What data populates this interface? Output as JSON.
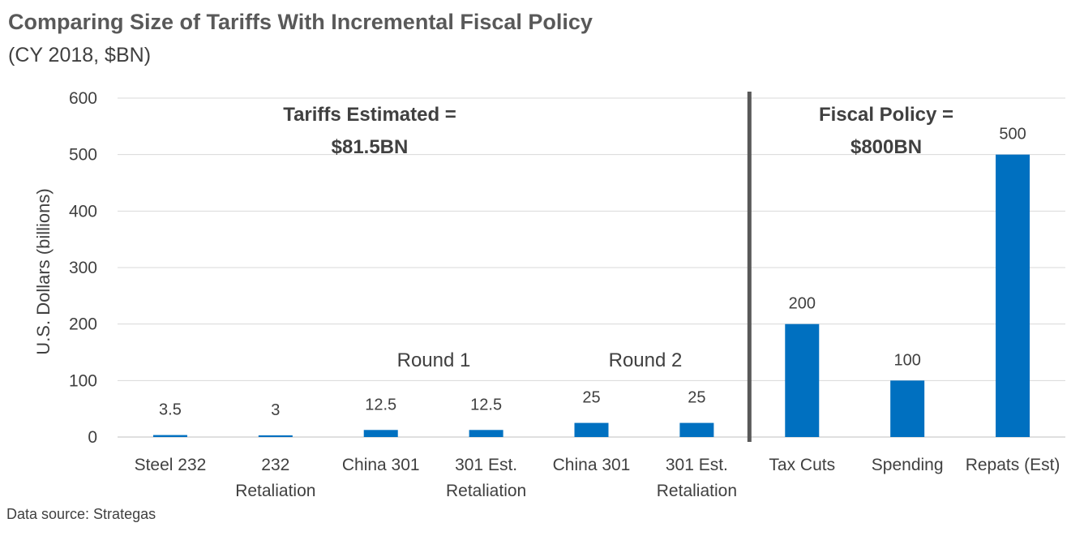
{
  "chart_data": {
    "type": "bar",
    "title": "Comparing Size of Tariffs With Incremental Fiscal Policy",
    "subtitle": "(CY 2018, $BN)",
    "ylabel": "U.S. Dollars (billions)",
    "xlabel": "",
    "ylim": [
      0,
      600
    ],
    "yticks": [
      0,
      100,
      200,
      300,
      400,
      500,
      600
    ],
    "grid": true,
    "bar_color": "#0070C0",
    "divider_color": "#595959",
    "categories": [
      [
        "Steel 232"
      ],
      [
        "232",
        "Retaliation"
      ],
      [
        "China 301"
      ],
      [
        "301 Est.",
        "Retaliation"
      ],
      [
        "China 301"
      ],
      [
        "301 Est.",
        "Retaliation"
      ],
      [
        "Tax Cuts"
      ],
      [
        "Spending"
      ],
      [
        "Repats (Est)"
      ]
    ],
    "values": [
      3.5,
      3,
      12.5,
      12.5,
      25,
      25,
      200,
      100,
      500
    ],
    "value_labels": [
      "3.5",
      "3",
      "12.5",
      "12.5",
      "25",
      "25",
      "200",
      "100",
      "500"
    ],
    "annotations": {
      "tariffs_line1": "Tariffs Estimated =",
      "tariffs_line2": "$81.5BN",
      "fiscal_line1": "Fiscal Policy =",
      "fiscal_line2": "$800BN",
      "round1": "Round 1",
      "round2": "Round 2"
    },
    "source": "Data source: Strategas"
  }
}
